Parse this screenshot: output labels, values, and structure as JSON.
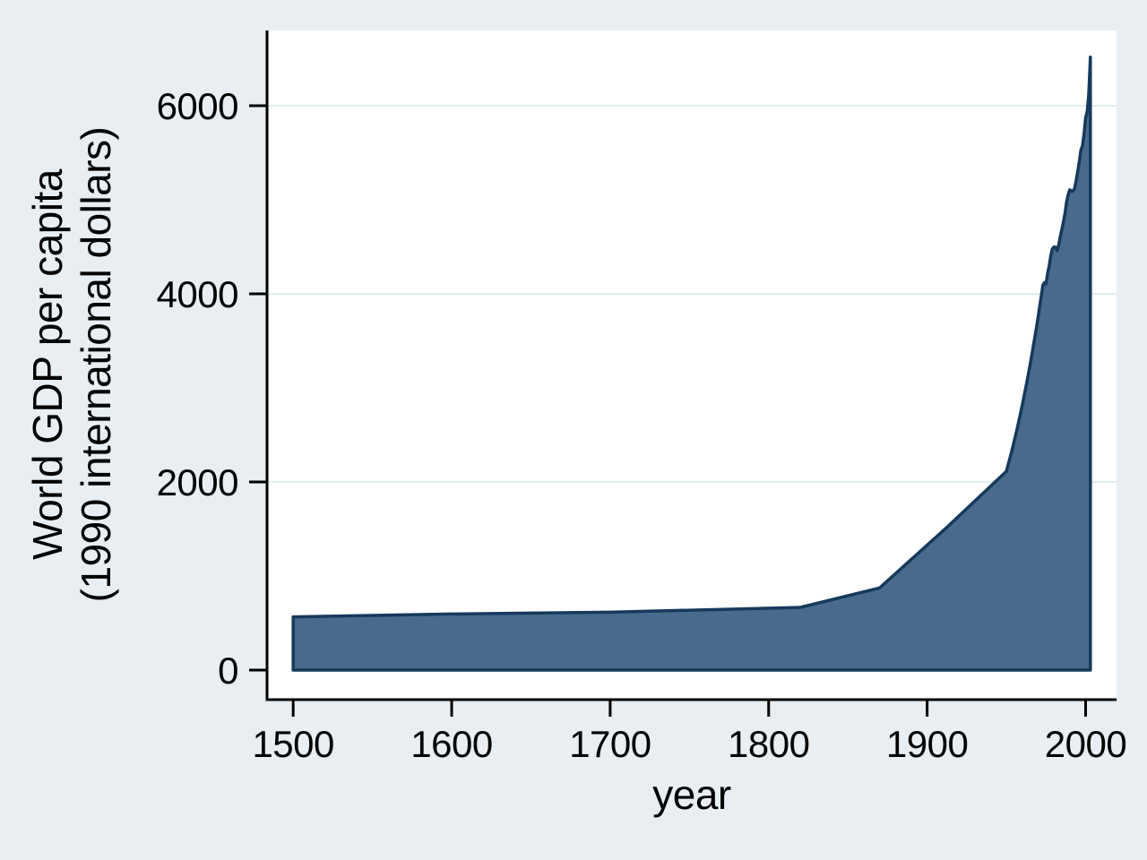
{
  "chart_data": {
    "type": "area",
    "title": "",
    "xlabel": "year",
    "ylabel_line1": "World GDP per capita",
    "ylabel_line2": "(1990 international dollars)",
    "x_tick_labels": [
      "1500",
      "1600",
      "1700",
      "1800",
      "1900",
      "2000"
    ],
    "x_tick_values": [
      1500,
      1600,
      1700,
      1800,
      1900,
      2000
    ],
    "y_tick_labels": [
      "0",
      "2000",
      "4000",
      "6000"
    ],
    "y_tick_values": [
      0,
      2000,
      4000,
      6000
    ],
    "xlim": [
      1483.5,
      2019.5
    ],
    "ylim": [
      0,
      6800
    ],
    "grid": "horizontal-major",
    "legend": "none",
    "baseline_value": 0,
    "series": [
      {
        "name": "World GDP per capita (1990 international dollars)",
        "points": [
          [
            1500,
            566
          ],
          [
            1600,
            596
          ],
          [
            1700,
            615
          ],
          [
            1820,
            667
          ],
          [
            1870,
            873
          ],
          [
            1913,
            1526
          ],
          [
            1950,
            2113
          ],
          [
            1951,
            2175
          ],
          [
            1952,
            2238
          ],
          [
            1953,
            2303
          ],
          [
            1954,
            2370
          ],
          [
            1955,
            2439
          ],
          [
            1956,
            2510
          ],
          [
            1957,
            2583
          ],
          [
            1958,
            2658
          ],
          [
            1959,
            2736
          ],
          [
            1960,
            2816
          ],
          [
            1961,
            2898
          ],
          [
            1962,
            2982
          ],
          [
            1963,
            3069
          ],
          [
            1964,
            3158
          ],
          [
            1965,
            3250
          ],
          [
            1966,
            3345
          ],
          [
            1967,
            3443
          ],
          [
            1968,
            3543
          ],
          [
            1969,
            3646
          ],
          [
            1970,
            3752
          ],
          [
            1971,
            3861
          ],
          [
            1972,
            3974
          ],
          [
            1973,
            4091
          ],
          [
            1974,
            4119
          ],
          [
            1975,
            4103
          ],
          [
            1976,
            4222
          ],
          [
            1977,
            4293
          ],
          [
            1978,
            4404
          ],
          [
            1979,
            4478
          ],
          [
            1980,
            4498
          ],
          [
            1981,
            4496
          ],
          [
            1982,
            4459
          ],
          [
            1983,
            4513
          ],
          [
            1984,
            4610
          ],
          [
            1985,
            4685
          ],
          [
            1986,
            4768
          ],
          [
            1987,
            4857
          ],
          [
            1988,
            4978
          ],
          [
            1989,
            5057
          ],
          [
            1990,
            5106
          ],
          [
            1991,
            5093
          ],
          [
            1992,
            5092
          ],
          [
            1993,
            5118
          ],
          [
            1994,
            5202
          ],
          [
            1995,
            5301
          ],
          [
            1996,
            5402
          ],
          [
            1997,
            5526
          ],
          [
            1998,
            5574
          ],
          [
            1999,
            5697
          ],
          [
            2000,
            5871
          ],
          [
            2001,
            5940
          ],
          [
            2002,
            6120
          ],
          [
            2003,
            6516
          ]
        ]
      }
    ],
    "colors": {
      "page_background": "#e8eef2",
      "plot_background": "#ffffff",
      "gridline": "#e2edf1",
      "axis": "#000000",
      "text": "#000000",
      "area_fill": "#486b8d",
      "area_stroke": "#16395c"
    }
  }
}
